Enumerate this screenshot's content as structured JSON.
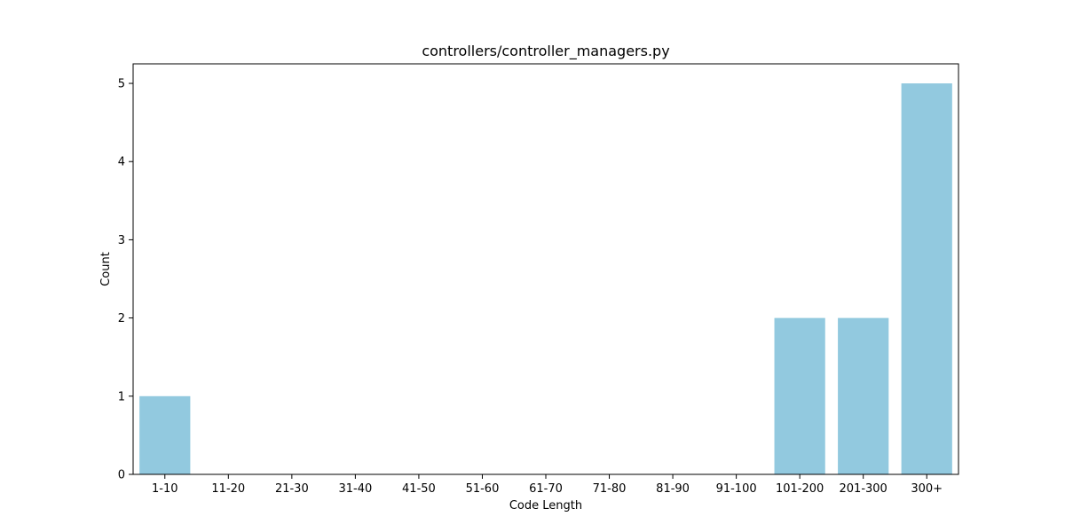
{
  "chart_data": {
    "type": "bar",
    "title": "controllers/controller_managers.py",
    "xlabel": "Code Length",
    "ylabel": "Count",
    "categories": [
      "1-10",
      "11-20",
      "21-30",
      "31-40",
      "41-50",
      "51-60",
      "61-70",
      "71-80",
      "81-90",
      "91-100",
      "101-200",
      "201-300",
      "300+"
    ],
    "values": [
      1,
      0,
      0,
      0,
      0,
      0,
      0,
      0,
      0,
      0,
      2,
      2,
      5
    ],
    "ylim": [
      0,
      5.25
    ],
    "yticks": [
      0,
      1,
      2,
      3,
      4,
      5
    ],
    "bar_color": "#92c9df",
    "grid": false,
    "legend": "none"
  }
}
